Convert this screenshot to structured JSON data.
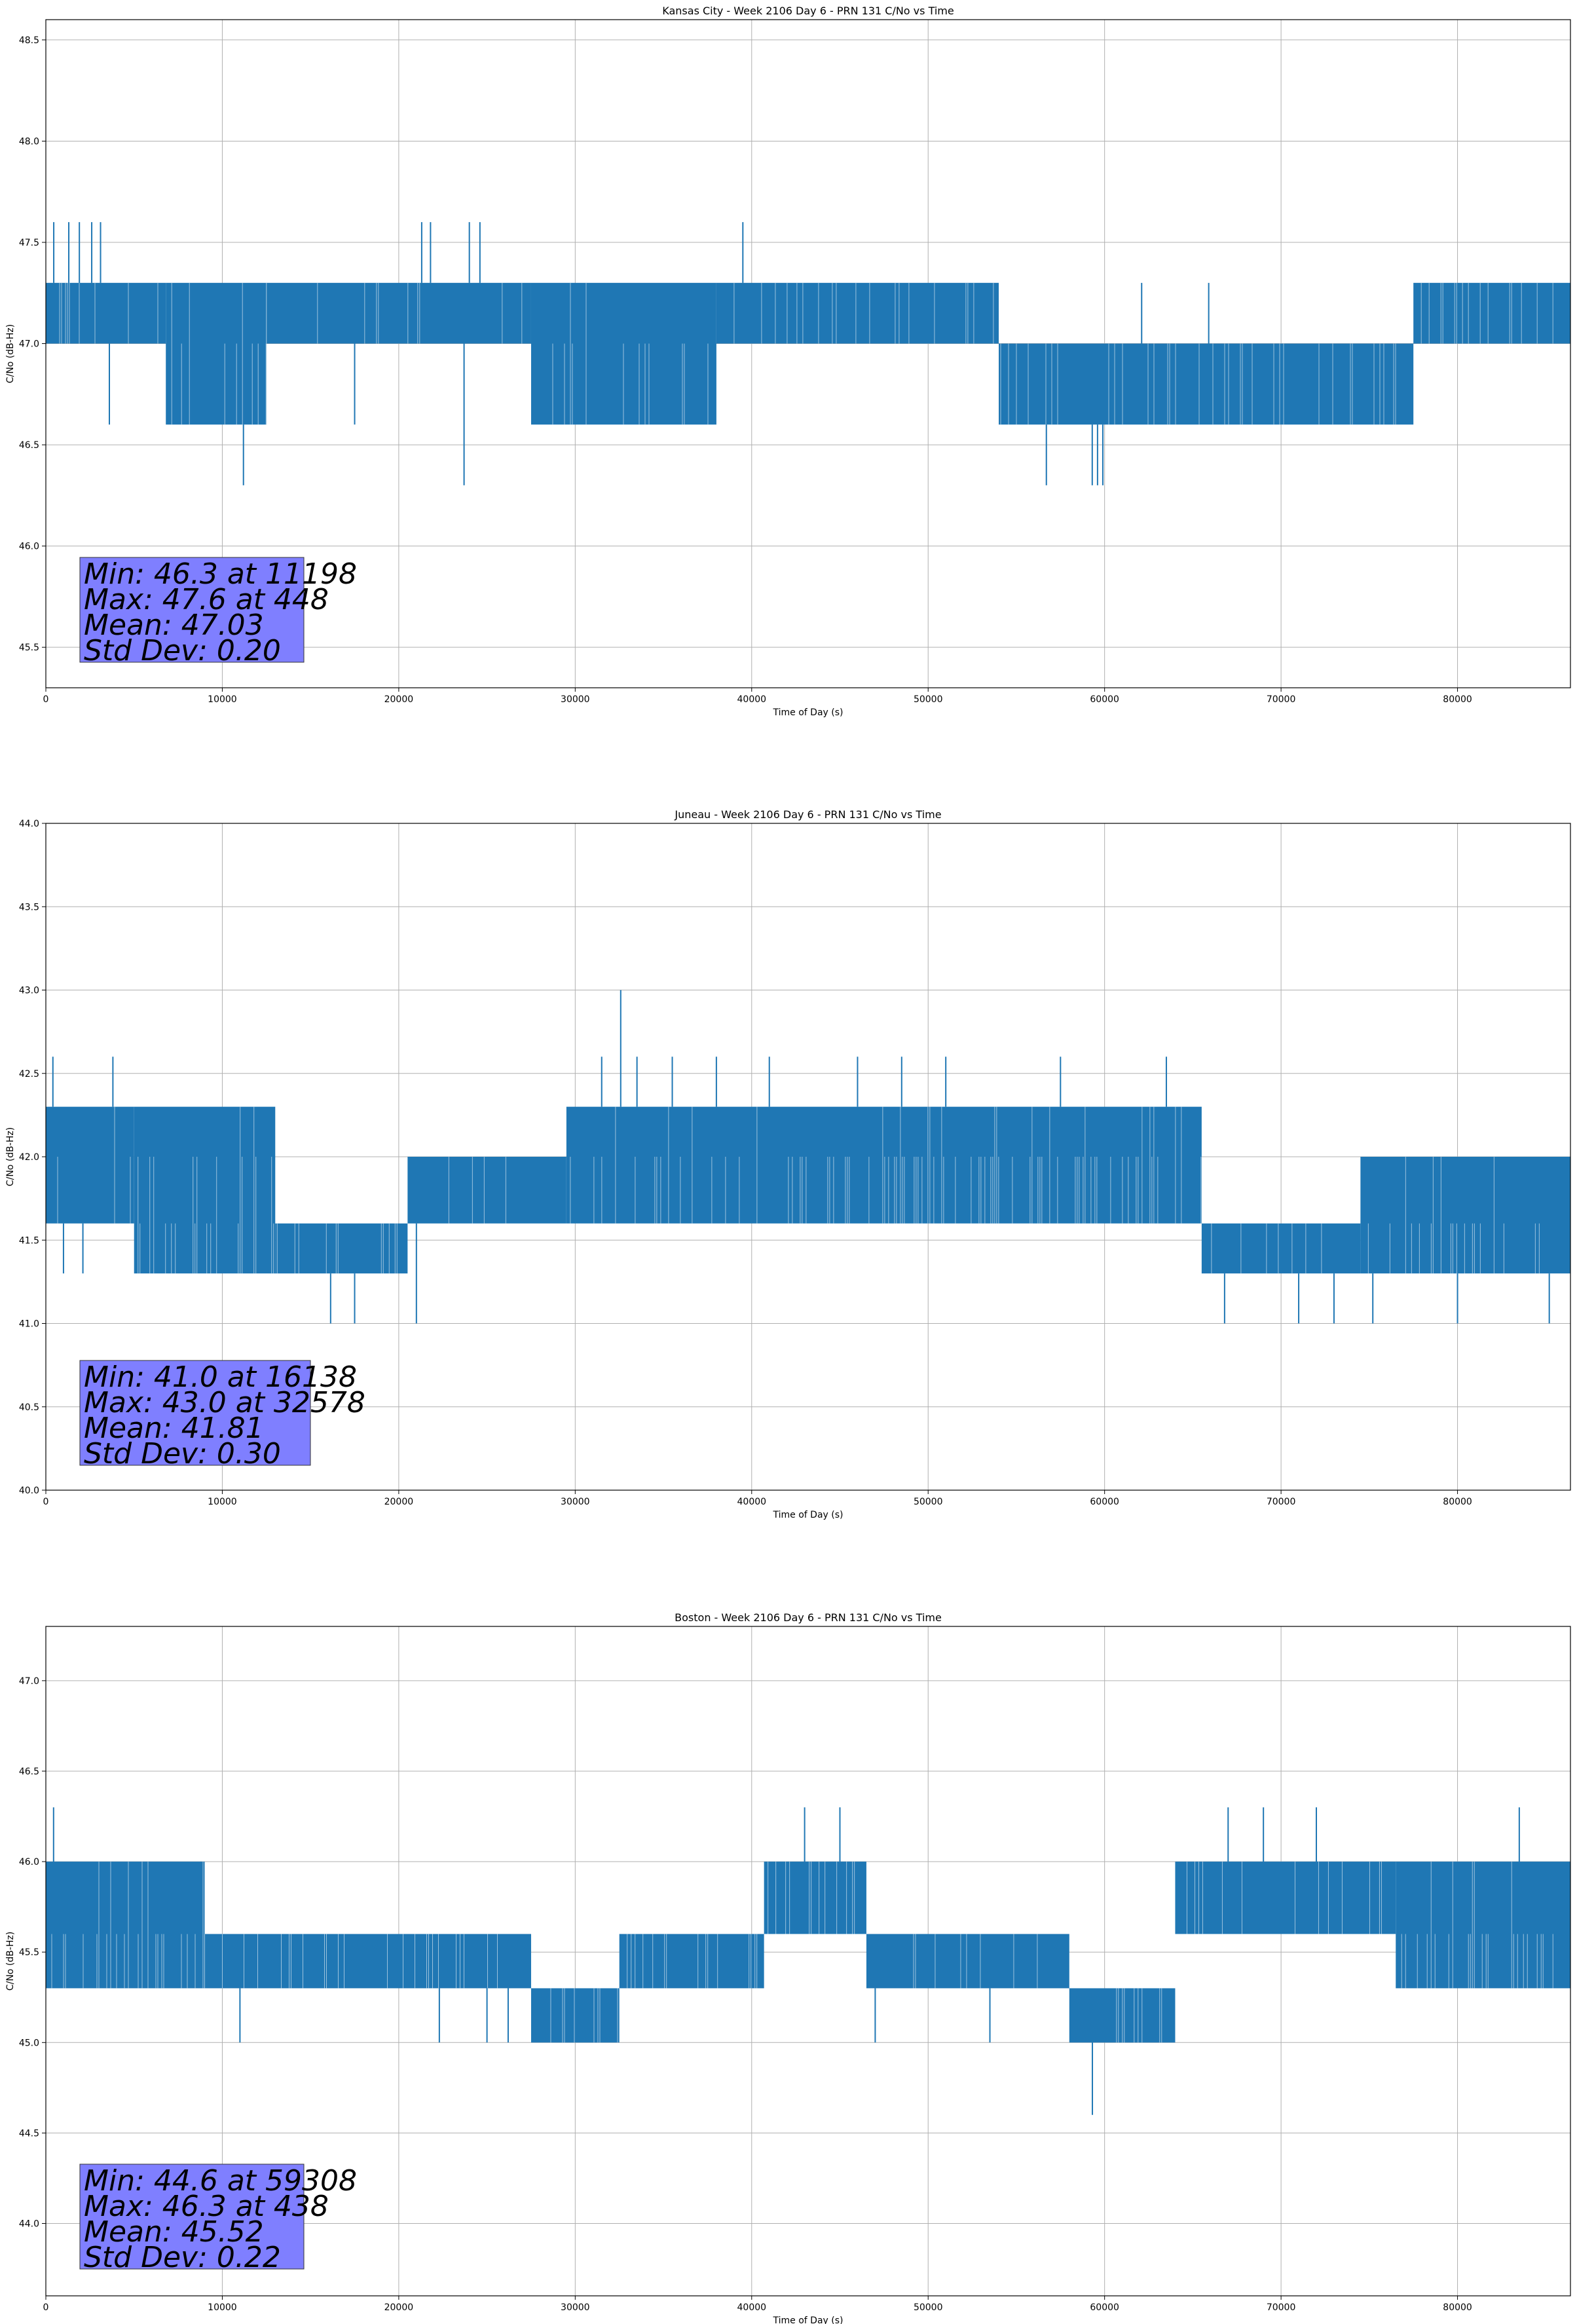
{
  "chart_data": [
    {
      "type": "line",
      "title": "Kansas City - Week 2106 Day 6 - PRN 131 C/No vs Time",
      "xlabel": "Time of Day (s)",
      "ylabel": "C/No (dB-Hz)",
      "xlim": [
        0,
        86400
      ],
      "ylim": [
        45.3,
        48.6
      ],
      "xticks": [
        0,
        10000,
        20000,
        30000,
        40000,
        50000,
        60000,
        70000,
        80000
      ],
      "yticks": [
        "45.5",
        "46.0",
        "46.5",
        "47.0",
        "47.5",
        "48.0",
        "48.5"
      ],
      "grid": true,
      "color": "#1f77b4",
      "levels": [
        46.6,
        47.0,
        47.3
      ],
      "segments": [
        {
          "x0": 0,
          "x1": 6800,
          "lo": 47.0,
          "hi": 47.3
        },
        {
          "x0": 6800,
          "x1": 12500,
          "lo": 46.6,
          "hi": 47.3
        },
        {
          "x0": 12500,
          "x1": 27500,
          "lo": 47.0,
          "hi": 47.3
        },
        {
          "x0": 27500,
          "x1": 38000,
          "lo": 46.6,
          "hi": 47.3
        },
        {
          "x0": 38000,
          "x1": 54000,
          "lo": 47.0,
          "hi": 47.3
        },
        {
          "x0": 54000,
          "x1": 77500,
          "lo": 46.6,
          "hi": 47.0
        },
        {
          "x0": 77500,
          "x1": 86400,
          "lo": 47.0,
          "hi": 47.3
        }
      ],
      "spikes": [
        {
          "x": 448,
          "y": 47.6
        },
        {
          "x": 1300,
          "y": 47.6
        },
        {
          "x": 1900,
          "y": 47.6
        },
        {
          "x": 2600,
          "y": 47.6
        },
        {
          "x": 3100,
          "y": 47.6
        },
        {
          "x": 21300,
          "y": 47.6
        },
        {
          "x": 21800,
          "y": 47.6
        },
        {
          "x": 24000,
          "y": 47.6
        },
        {
          "x": 24600,
          "y": 47.6
        },
        {
          "x": 39500,
          "y": 47.6
        },
        {
          "x": 3600,
          "y": 46.6
        },
        {
          "x": 17500,
          "y": 46.6
        },
        {
          "x": 11198,
          "y": 46.3
        },
        {
          "x": 23700,
          "y": 46.3
        },
        {
          "x": 56700,
          "y": 46.3
        },
        {
          "x": 59300,
          "y": 46.3
        },
        {
          "x": 59600,
          "y": 46.3
        },
        {
          "x": 59900,
          "y": 46.3
        },
        {
          "x": 62100,
          "y": 47.3
        },
        {
          "x": 65900,
          "y": 47.3
        }
      ],
      "stats": [
        "Min: 46.3 at 11198",
        "Max: 47.6 at 448",
        "Mean: 47.03",
        "Std Dev: 0.20"
      ]
    },
    {
      "type": "line",
      "title": "Juneau - Week 2106 Day 6 - PRN 131 C/No vs Time",
      "xlabel": "Time of Day (s)",
      "ylabel": "C/No (dB-Hz)",
      "xlim": [
        0,
        86400
      ],
      "ylim": [
        40.0,
        44.0
      ],
      "xticks": [
        0,
        10000,
        20000,
        30000,
        40000,
        50000,
        60000,
        70000,
        80000
      ],
      "yticks": [
        "40.0",
        "40.5",
        "41.0",
        "41.5",
        "42.0",
        "42.5",
        "43.0",
        "43.5",
        "44.0"
      ],
      "grid": true,
      "color": "#1f77b4",
      "levels": [
        41.3,
        41.6,
        42.0,
        42.3
      ],
      "segments": [
        {
          "x0": 0,
          "x1": 5000,
          "lo": 41.6,
          "hi": 42.3
        },
        {
          "x0": 5000,
          "x1": 13000,
          "lo": 41.3,
          "hi": 42.3
        },
        {
          "x0": 13000,
          "x1": 20500,
          "lo": 41.3,
          "hi": 41.6
        },
        {
          "x0": 20500,
          "x1": 29500,
          "lo": 41.6,
          "hi": 42.0
        },
        {
          "x0": 29500,
          "x1": 65500,
          "lo": 41.6,
          "hi": 42.3
        },
        {
          "x0": 65500,
          "x1": 74500,
          "lo": 41.3,
          "hi": 41.6
        },
        {
          "x0": 74500,
          "x1": 86400,
          "lo": 41.3,
          "hi": 42.0
        }
      ],
      "spikes": [
        {
          "x": 400,
          "y": 42.6
        },
        {
          "x": 3800,
          "y": 42.6
        },
        {
          "x": 32578,
          "y": 43.0
        },
        {
          "x": 31500,
          "y": 42.6
        },
        {
          "x": 33500,
          "y": 42.6
        },
        {
          "x": 35500,
          "y": 42.6
        },
        {
          "x": 38000,
          "y": 42.6
        },
        {
          "x": 41000,
          "y": 42.6
        },
        {
          "x": 46000,
          "y": 42.6
        },
        {
          "x": 48500,
          "y": 42.6
        },
        {
          "x": 51000,
          "y": 42.6
        },
        {
          "x": 57500,
          "y": 42.6
        },
        {
          "x": 63500,
          "y": 42.6
        },
        {
          "x": 16138,
          "y": 41.0
        },
        {
          "x": 17500,
          "y": 41.0
        },
        {
          "x": 21000,
          "y": 41.0
        },
        {
          "x": 66800,
          "y": 41.0
        },
        {
          "x": 71000,
          "y": 41.0
        },
        {
          "x": 73000,
          "y": 41.0
        },
        {
          "x": 75200,
          "y": 41.0
        },
        {
          "x": 80000,
          "y": 41.0
        },
        {
          "x": 85200,
          "y": 41.0
        },
        {
          "x": 1000,
          "y": 41.3
        },
        {
          "x": 2100,
          "y": 41.3
        }
      ],
      "stats": [
        "Min: 41.0 at 16138",
        "Max: 43.0 at 32578",
        "Mean: 41.81",
        "Std Dev: 0.30"
      ]
    },
    {
      "type": "line",
      "title": "Boston - Week 2106 Day 6 - PRN 131 C/No vs Time",
      "xlabel": "Time of Day (s)",
      "ylabel": "C/No (dB-Hz)",
      "xlim": [
        0,
        86400
      ],
      "ylim": [
        43.6,
        47.3
      ],
      "xticks": [
        0,
        10000,
        20000,
        30000,
        40000,
        50000,
        60000,
        70000,
        80000
      ],
      "yticks": [
        "44.0",
        "44.5",
        "45.0",
        "45.5",
        "46.0",
        "46.5",
        "47.0"
      ],
      "grid": true,
      "color": "#1f77b4",
      "levels": [
        45.0,
        45.3,
        45.6,
        46.0
      ],
      "segments": [
        {
          "x0": 0,
          "x1": 9000,
          "lo": 45.3,
          "hi": 46.0
        },
        {
          "x0": 9000,
          "x1": 27500,
          "lo": 45.3,
          "hi": 45.6
        },
        {
          "x0": 27500,
          "x1": 32500,
          "lo": 45.0,
          "hi": 45.3
        },
        {
          "x0": 32500,
          "x1": 40700,
          "lo": 45.3,
          "hi": 45.6
        },
        {
          "x0": 40700,
          "x1": 46500,
          "lo": 45.6,
          "hi": 46.0
        },
        {
          "x0": 46500,
          "x1": 58000,
          "lo": 45.3,
          "hi": 45.6
        },
        {
          "x0": 58000,
          "x1": 64000,
          "lo": 45.0,
          "hi": 45.3
        },
        {
          "x0": 64000,
          "x1": 76500,
          "lo": 45.6,
          "hi": 46.0
        },
        {
          "x0": 76500,
          "x1": 86400,
          "lo": 45.3,
          "hi": 46.0
        }
      ],
      "spikes": [
        {
          "x": 438,
          "y": 46.3
        },
        {
          "x": 43000,
          "y": 46.3
        },
        {
          "x": 45000,
          "y": 46.3
        },
        {
          "x": 67000,
          "y": 46.3
        },
        {
          "x": 69000,
          "y": 46.3
        },
        {
          "x": 72000,
          "y": 46.3
        },
        {
          "x": 83500,
          "y": 46.3
        },
        {
          "x": 59308,
          "y": 44.6
        },
        {
          "x": 11000,
          "y": 45.0
        },
        {
          "x": 22300,
          "y": 45.0
        },
        {
          "x": 25000,
          "y": 45.0
        },
        {
          "x": 26200,
          "y": 45.0
        },
        {
          "x": 47000,
          "y": 45.0
        },
        {
          "x": 53500,
          "y": 45.0
        }
      ],
      "stats": [
        "Min: 44.6 at 59308",
        "Max: 46.3 at 438",
        "Mean: 45.52",
        "Std Dev: 0.22"
      ]
    }
  ]
}
